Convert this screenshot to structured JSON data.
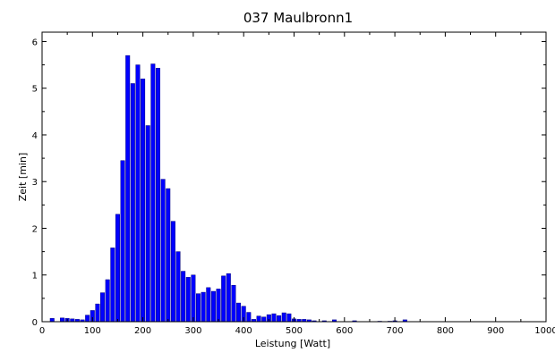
{
  "chart_data": {
    "type": "bar",
    "title": "037 Maulbronn1",
    "xlabel": "Leistung [Watt]",
    "ylabel": "Zeit [min]",
    "xlim": [
      0,
      1000
    ],
    "ylim": [
      0,
      6.2
    ],
    "x_ticks": [
      "0",
      "100",
      "200",
      "300",
      "400",
      "500",
      "600",
      "700",
      "800",
      "900",
      "1000"
    ],
    "y_ticks": [
      "0",
      "1",
      "2",
      "3",
      "4",
      "5",
      "6"
    ],
    "bar_color": "#0000ff",
    "bar_width": 8,
    "grid": false,
    "x": [
      20,
      40,
      50,
      60,
      70,
      80,
      90,
      100,
      110,
      120,
      130,
      140,
      150,
      160,
      170,
      180,
      190,
      200,
      210,
      220,
      230,
      240,
      250,
      260,
      270,
      280,
      290,
      300,
      310,
      320,
      330,
      340,
      350,
      360,
      370,
      380,
      390,
      400,
      410,
      420,
      430,
      440,
      450,
      460,
      470,
      480,
      490,
      500,
      510,
      520,
      530,
      540,
      560,
      580,
      620,
      670,
      690,
      700,
      720
    ],
    "values": [
      0.07,
      0.08,
      0.07,
      0.06,
      0.05,
      0.04,
      0.14,
      0.24,
      0.38,
      0.62,
      0.9,
      1.58,
      2.3,
      3.45,
      5.7,
      5.1,
      5.5,
      5.2,
      4.2,
      5.52,
      5.43,
      3.05,
      2.85,
      2.15,
      1.5,
      1.08,
      0.95,
      1.0,
      0.6,
      0.63,
      0.73,
      0.65,
      0.7,
      0.98,
      1.03,
      0.78,
      0.4,
      0.33,
      0.2,
      0.05,
      0.12,
      0.1,
      0.15,
      0.17,
      0.13,
      0.19,
      0.17,
      0.06,
      0.05,
      0.05,
      0.04,
      0.02,
      0.02,
      0.04,
      0.02,
      0.01,
      0.01,
      0.02,
      0.04
    ]
  }
}
